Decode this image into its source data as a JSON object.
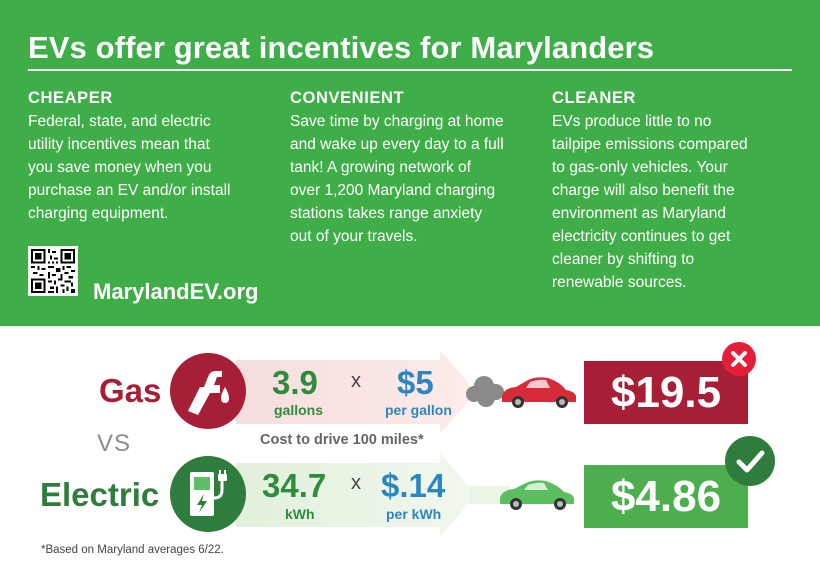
{
  "header": {
    "title": "EVs offer great incentives for Marylanders"
  },
  "columns": [
    {
      "title": "CHEAPER",
      "lines": [
        "Federal, state, and electric",
        "utility incentives mean that",
        "you save money when you",
        "purchase an EV and/or install",
        "charging equipment."
      ]
    },
    {
      "title": "CONVENIENT",
      "lines": [
        "Save time by charging at home",
        "and wake up every day to a full",
        "tank! A growing network of",
        "over 1,200 Maryland charging",
        "stations takes range anxiety",
        "out of your travels."
      ]
    },
    {
      "title": "CLEANER",
      "lines": [
        "EVs produce little to no",
        "tailpipe emissions compared",
        "to gas-only vehicles. Your",
        "charge will also benefit the",
        "environment as Maryland",
        "electricity continues to get",
        "cleaner by shifting to",
        "renewable sources."
      ]
    }
  ],
  "website": "MarylandEV.org",
  "comparison": {
    "gas": {
      "label": "Gas",
      "quantity": "3.9",
      "quantity_unit": "gallons",
      "operator": "x",
      "price": "$5",
      "price_unit": "per gallon",
      "total": "$19.5",
      "icon": "fuel-nozzle-icon",
      "badge_icon": "x-mark-icon"
    },
    "vs": "VS",
    "caption": "Cost to drive 100 miles*",
    "electric": {
      "label": "Electric",
      "quantity": "34.7",
      "quantity_unit": "kWh",
      "operator": "x",
      "price": "$.14",
      "price_unit": "per kWh",
      "total": "$4.86",
      "icon": "ev-charger-icon",
      "badge_icon": "checkmark-icon"
    }
  },
  "footnote": "*Based on Maryland averages 6/22.",
  "colors": {
    "panel_green": "#3fae49",
    "gas_red": "#a71f36",
    "electric_green": "#2f7d3c",
    "total_green": "#4cae4c",
    "x_badge_red": "#e51d36",
    "value_blue": "#2e86c1"
  }
}
